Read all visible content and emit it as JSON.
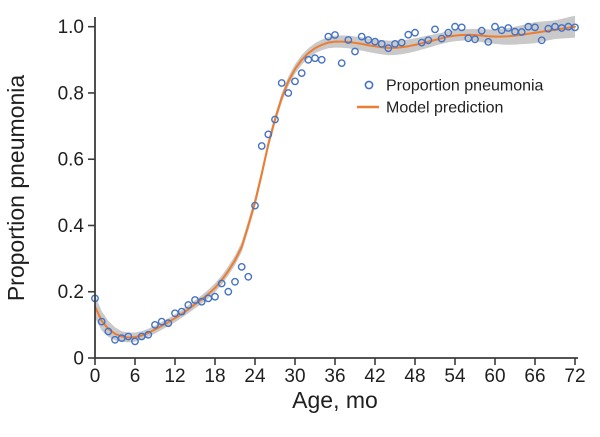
{
  "chart_data": {
    "type": "scatter",
    "title": "",
    "xlabel": "Age, mo",
    "ylabel": "Proportion pneumonia",
    "xlim": [
      0,
      72
    ],
    "ylim": [
      0,
      1.0
    ],
    "grid": false,
    "x_ticks": {
      "values": [
        0,
        6,
        12,
        18,
        24,
        30,
        36,
        42,
        48,
        54,
        60,
        66,
        72
      ],
      "labels": [
        "0",
        "6",
        "12",
        "18",
        "24",
        "30",
        "36",
        "42",
        "48",
        "54",
        "60",
        "66",
        "72"
      ]
    },
    "y_ticks": {
      "values": [
        0,
        0.2,
        0.4,
        0.6,
        0.8,
        1.0
      ],
      "labels": [
        "0",
        "0.2",
        "0.4",
        "0.6",
        "0.8",
        "1.0"
      ]
    },
    "legend": {
      "position": "center-right",
      "entries": [
        {
          "label": "Proportion pneumonia",
          "marker": "open-circle",
          "color": "#4472C4"
        },
        {
          "label": "Model prediction",
          "marker": "line",
          "color": "#ED7D31"
        }
      ]
    },
    "colors": {
      "scatter": "#4472C4",
      "line": "#ED7D31",
      "band": "#C3C3C3",
      "axis": "#3C3C3C",
      "text": "#1F1F1F"
    },
    "series": [
      {
        "name": "Proportion pneumonia",
        "type": "scatter",
        "marker": "open-circle",
        "x": [
          0,
          1,
          2,
          3,
          4,
          5,
          6,
          7,
          8,
          9,
          10,
          11,
          12,
          13,
          14,
          15,
          16,
          17,
          18,
          19,
          20,
          21,
          22,
          23,
          24,
          25,
          26,
          27,
          28,
          29,
          30,
          31,
          32,
          33,
          34,
          35,
          36,
          37,
          38,
          39,
          40,
          41,
          42,
          43,
          44,
          45,
          46,
          47,
          48,
          49,
          50,
          51,
          52,
          53,
          54,
          55,
          56,
          57,
          58,
          59,
          60,
          61,
          62,
          63,
          64,
          65,
          66,
          67,
          68,
          69,
          70,
          71,
          72
        ],
        "y": [
          0.18,
          0.11,
          0.08,
          0.055,
          0.06,
          0.065,
          0.05,
          0.065,
          0.07,
          0.1,
          0.11,
          0.105,
          0.135,
          0.14,
          0.16,
          0.175,
          0.17,
          0.18,
          0.185,
          0.225,
          0.2,
          0.23,
          0.275,
          0.245,
          0.46,
          0.64,
          0.675,
          0.72,
          0.83,
          0.8,
          0.835,
          0.86,
          0.9,
          0.905,
          0.9,
          0.97,
          0.975,
          0.89,
          0.96,
          0.925,
          0.97,
          0.96,
          0.955,
          0.948,
          0.935,
          0.948,
          0.952,
          0.976,
          0.982,
          0.952,
          0.959,
          0.992,
          0.964,
          0.982,
          1.0,
          0.998,
          0.965,
          0.962,
          0.988,
          0.954,
          1.0,
          0.989,
          0.996,
          0.985,
          0.984,
          1.0,
          0.998,
          0.959,
          0.994,
          1.0,
          0.996,
          1.0,
          0.998
        ]
      },
      {
        "name": "Model prediction",
        "type": "line",
        "x": [
          0,
          1,
          2,
          3,
          4,
          5,
          6,
          7,
          8,
          9,
          10,
          11,
          12,
          13,
          14,
          15,
          16,
          17,
          18,
          19,
          20,
          21,
          22,
          23,
          24,
          25,
          26,
          27,
          28,
          29,
          30,
          31,
          32,
          33,
          34,
          35,
          36,
          37,
          38,
          39,
          40,
          41,
          42,
          43,
          44,
          45,
          46,
          47,
          48,
          49,
          50,
          51,
          52,
          53,
          54,
          55,
          56,
          57,
          58,
          59,
          60,
          61,
          62,
          63,
          64,
          65,
          66,
          67,
          68,
          69,
          70,
          71,
          72
        ],
        "y": [
          0.155,
          0.112,
          0.088,
          0.073,
          0.065,
          0.062,
          0.063,
          0.068,
          0.076,
          0.086,
          0.097,
          0.108,
          0.12,
          0.133,
          0.147,
          0.162,
          0.177,
          0.193,
          0.212,
          0.235,
          0.263,
          0.295,
          0.335,
          0.4,
          0.47,
          0.555,
          0.645,
          0.72,
          0.785,
          0.835,
          0.872,
          0.9,
          0.92,
          0.935,
          0.945,
          0.952,
          0.955,
          0.955,
          0.954,
          0.951,
          0.948,
          0.944,
          0.941,
          0.938,
          0.936,
          0.936,
          0.938,
          0.941,
          0.945,
          0.95,
          0.955,
          0.96,
          0.965,
          0.97,
          0.973,
          0.975,
          0.976,
          0.975,
          0.973,
          0.971,
          0.97,
          0.97,
          0.971,
          0.973,
          0.976,
          0.979,
          0.982,
          0.985,
          0.988,
          0.991,
          0.994,
          0.997,
          1.0
        ]
      },
      {
        "name": "Confidence band",
        "type": "band",
        "halfwidth_anchors": [
          [
            0,
            0.034
          ],
          [
            2,
            0.024
          ],
          [
            4,
            0.016
          ],
          [
            8,
            0.012
          ],
          [
            14,
            0.012
          ],
          [
            20,
            0.014
          ],
          [
            24,
            0.016
          ],
          [
            28,
            0.014
          ],
          [
            33,
            0.015
          ],
          [
            36,
            0.018
          ],
          [
            40,
            0.02
          ],
          [
            44,
            0.022
          ],
          [
            48,
            0.02
          ],
          [
            52,
            0.017
          ],
          [
            56,
            0.017
          ],
          [
            60,
            0.022
          ],
          [
            63,
            0.027
          ],
          [
            66,
            0.032
          ],
          [
            69,
            0.028
          ],
          [
            72,
            0.033
          ]
        ]
      }
    ]
  }
}
